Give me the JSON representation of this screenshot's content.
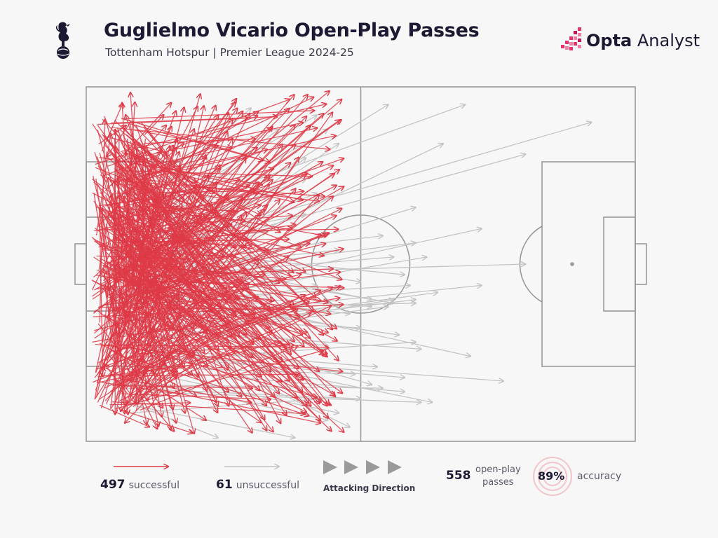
{
  "header": {
    "title": "Guglielmo Vicario Open-Play Passes",
    "subtitle": "Tottenham Hotspur | Premier League 2024-25",
    "brand_bold": "Opta",
    "brand_rest": " Analyst",
    "club_badge_icon": "cockerel-icon"
  },
  "colors": {
    "successful": "#de3a47",
    "unsuccessful": "#c4c4c4",
    "pitch_lines": "#9a9a9a",
    "background": "#f7f7f7",
    "brand_accent": "#e8316b"
  },
  "legend": {
    "successful_count": "497",
    "successful_label": "successful",
    "unsuccessful_count": "61",
    "unsuccessful_label": "unsuccessful",
    "direction_label": "Attacking Direction",
    "total_count": "558",
    "total_label_line1": "open-play",
    "total_label_line2": "passes",
    "accuracy_value": "89%",
    "accuracy_label": "accuracy"
  },
  "chart_data": {
    "type": "scatter",
    "description_units": "pitch coordinates 0-100 (x = attacking direction left to right, y = top to bottom)",
    "successful_count": 497,
    "unsuccessful_count": 61,
    "total": 558,
    "accuracy_pct": 89,
    "xlim": [
      0,
      100
    ],
    "ylim": [
      0,
      100
    ],
    "unsuccessful_passes": [
      [
        5,
        40,
        30,
        6
      ],
      [
        8,
        45,
        35,
        12
      ],
      [
        6,
        52,
        55,
        5
      ],
      [
        10,
        38,
        69,
        5
      ],
      [
        7,
        48,
        92,
        10
      ],
      [
        9,
        55,
        46,
        16
      ],
      [
        6,
        60,
        65,
        16
      ],
      [
        12,
        42,
        40,
        26
      ],
      [
        8,
        50,
        80,
        19
      ],
      [
        10,
        58,
        60,
        34
      ],
      [
        7,
        62,
        72,
        40
      ],
      [
        6,
        46,
        40,
        36
      ],
      [
        11,
        53,
        80,
        50
      ],
      [
        9,
        66,
        72,
        56
      ],
      [
        8,
        70,
        60,
        60
      ],
      [
        5,
        44,
        33,
        41
      ],
      [
        10,
        49,
        56,
        61
      ],
      [
        12,
        56,
        70,
        76
      ],
      [
        7,
        64,
        52,
        84
      ],
      [
        9,
        72,
        63,
        89
      ],
      [
        6,
        78,
        60,
        72
      ],
      [
        11,
        68,
        48,
        96
      ],
      [
        8,
        82,
        44,
        94
      ],
      [
        13,
        60,
        57,
        70
      ],
      [
        7,
        75,
        76,
        83
      ],
      [
        10,
        86,
        61,
        89
      ],
      [
        9,
        90,
        38,
        99
      ],
      [
        6,
        88,
        24,
        99
      ],
      [
        12,
        74,
        53,
        79
      ],
      [
        8,
        57,
        48,
        64
      ],
      [
        5,
        67,
        44,
        73
      ],
      [
        11,
        46,
        50,
        55
      ],
      [
        9,
        63,
        60,
        61
      ],
      [
        7,
        70,
        64,
        58
      ],
      [
        10,
        52,
        46,
        46
      ],
      [
        13,
        48,
        42,
        30
      ],
      [
        6,
        58,
        36,
        52
      ],
      [
        8,
        66,
        42,
        56
      ],
      [
        12,
        80,
        58,
        86
      ],
      [
        7,
        85,
        50,
        88
      ],
      [
        9,
        44,
        44,
        12
      ],
      [
        11,
        50,
        54,
        42
      ],
      [
        5,
        55,
        60,
        44
      ],
      [
        10,
        62,
        62,
        48
      ],
      [
        6,
        73,
        56,
        60
      ],
      [
        8,
        79,
        49,
        81
      ],
      [
        13,
        52,
        40,
        20
      ],
      [
        7,
        40,
        42,
        8
      ],
      [
        9,
        68,
        61,
        74
      ],
      [
        11,
        76,
        58,
        82
      ],
      [
        6,
        84,
        54,
        85
      ],
      [
        8,
        92,
        43,
        88
      ],
      [
        10,
        65,
        50,
        68
      ],
      [
        12,
        58,
        52,
        62
      ],
      [
        7,
        45,
        58,
        53
      ],
      [
        9,
        54,
        56,
        48
      ],
      [
        5,
        61,
        59,
        56
      ],
      [
        11,
        71,
        55,
        62
      ],
      [
        6,
        79,
        46,
        92
      ],
      [
        8,
        56,
        35,
        46
      ],
      [
        10,
        47,
        52,
        60
      ]
    ]
  }
}
